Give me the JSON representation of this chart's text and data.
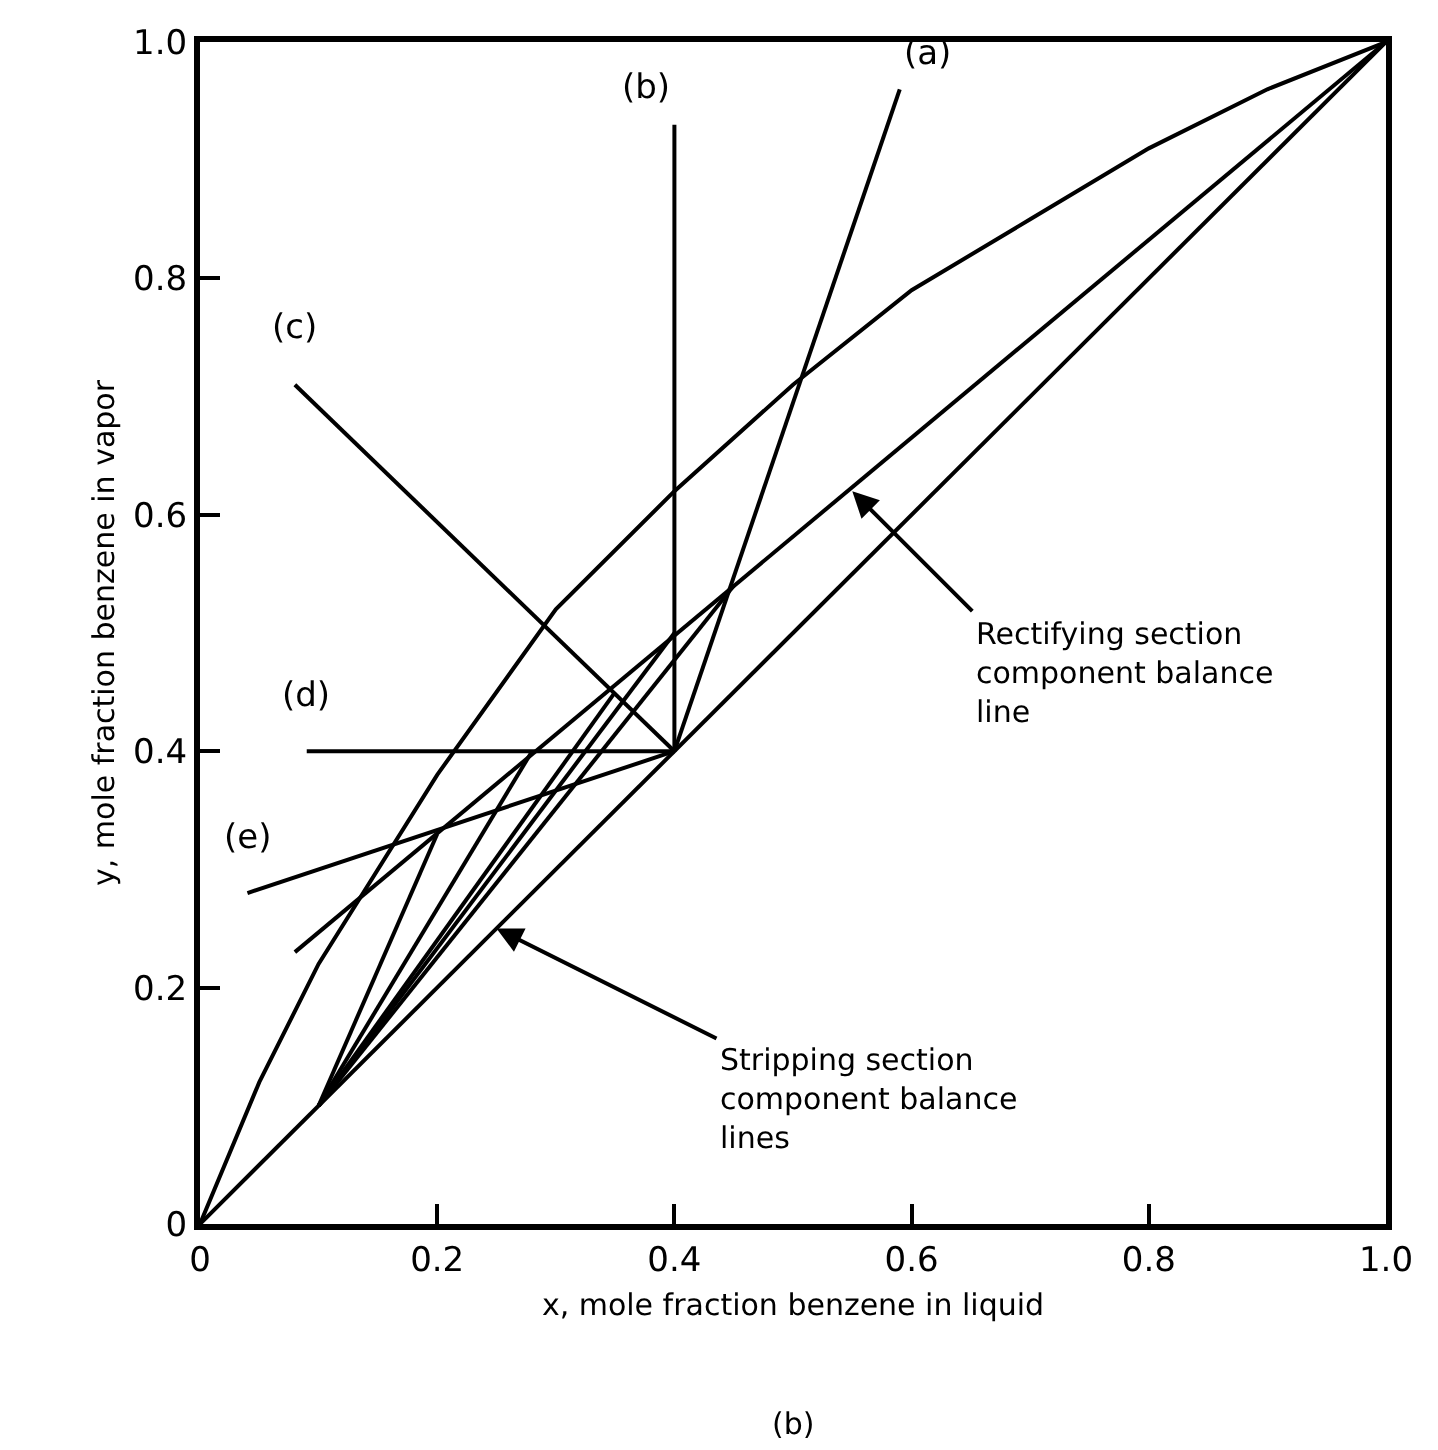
{
  "chart_data": {
    "type": "line",
    "xlabel": "x, mole fraction benzene in liquid",
    "ylabel": "y, mole fraction benzene in vapor",
    "xlim": [
      0,
      1
    ],
    "ylim": [
      0,
      1
    ],
    "xticks": [
      0,
      0.2,
      0.4,
      0.6,
      0.8,
      {
        "value": 1,
        "label": "1.0"
      }
    ],
    "yticks": [
      0,
      0.2,
      0.4,
      0.6,
      0.8,
      {
        "value": 1,
        "label": "1.0"
      }
    ],
    "legend": false,
    "marker": "none",
    "line_style": "solid",
    "series": [
      {
        "color": "#000000",
        "x": [
          0,
          1
        ],
        "values": [
          0,
          1
        ]
      },
      {
        "color": "#000000",
        "x": [
          0,
          0.05,
          0.1,
          0.2,
          0.3,
          0.4,
          0.5,
          0.6,
          0.7,
          0.8,
          0.9,
          1
        ],
        "values": [
          0,
          0.12,
          0.22,
          0.38,
          0.52,
          0.62,
          0.71,
          0.79,
          0.85,
          0.91,
          0.96,
          1
        ]
      },
      {
        "color": "#000000",
        "x": [
          0.08,
          1
        ],
        "values": [
          0.23,
          1
        ]
      },
      {
        "name": "(a)",
        "color": "#000000",
        "x": [
          0.4,
          0.59
        ],
        "values": [
          0.4,
          0.96
        ]
      },
      {
        "name": "(b)",
        "color": "#000000",
        "x": [
          0.4,
          0.4
        ],
        "values": [
          0.4,
          0.93
        ]
      },
      {
        "name": "(c)",
        "color": "#000000",
        "x": [
          0.4,
          0.08
        ],
        "values": [
          0.4,
          0.71
        ]
      },
      {
        "name": "(d)",
        "color": "#000000",
        "x": [
          0.4,
          0.09
        ],
        "values": [
          0.4,
          0.4
        ]
      },
      {
        "name": "(e)",
        "color": "#000000",
        "x": [
          0.4,
          0.04
        ],
        "values": [
          0.4,
          0.28
        ]
      },
      {
        "color": "#000000",
        "x": [
          0.1,
          0.45
        ],
        "values": [
          0.1,
          0.54
        ]
      },
      {
        "color": "#000000",
        "x": [
          0.1,
          0.4
        ],
        "values": [
          0.1,
          0.5
        ]
      },
      {
        "color": "#000000",
        "x": [
          0.1,
          0.35
        ],
        "values": [
          0.1,
          0.45
        ]
      },
      {
        "color": "#000000",
        "x": [
          0.1,
          0.28
        ],
        "values": [
          0.1,
          0.4
        ]
      },
      {
        "color": "#000000",
        "x": [
          0.1,
          0.2
        ],
        "values": [
          0.1,
          0.33
        ]
      }
    ],
    "annotations": [
      {
        "text": "Rectifying section\ncomponent balance\nline",
        "x": 0.55,
        "y": 0.62
      },
      {
        "text": "Stripping section\ncomponent balance\nlines",
        "x": 0.25,
        "y": 0.25
      },
      "(b)"
    ]
  }
}
